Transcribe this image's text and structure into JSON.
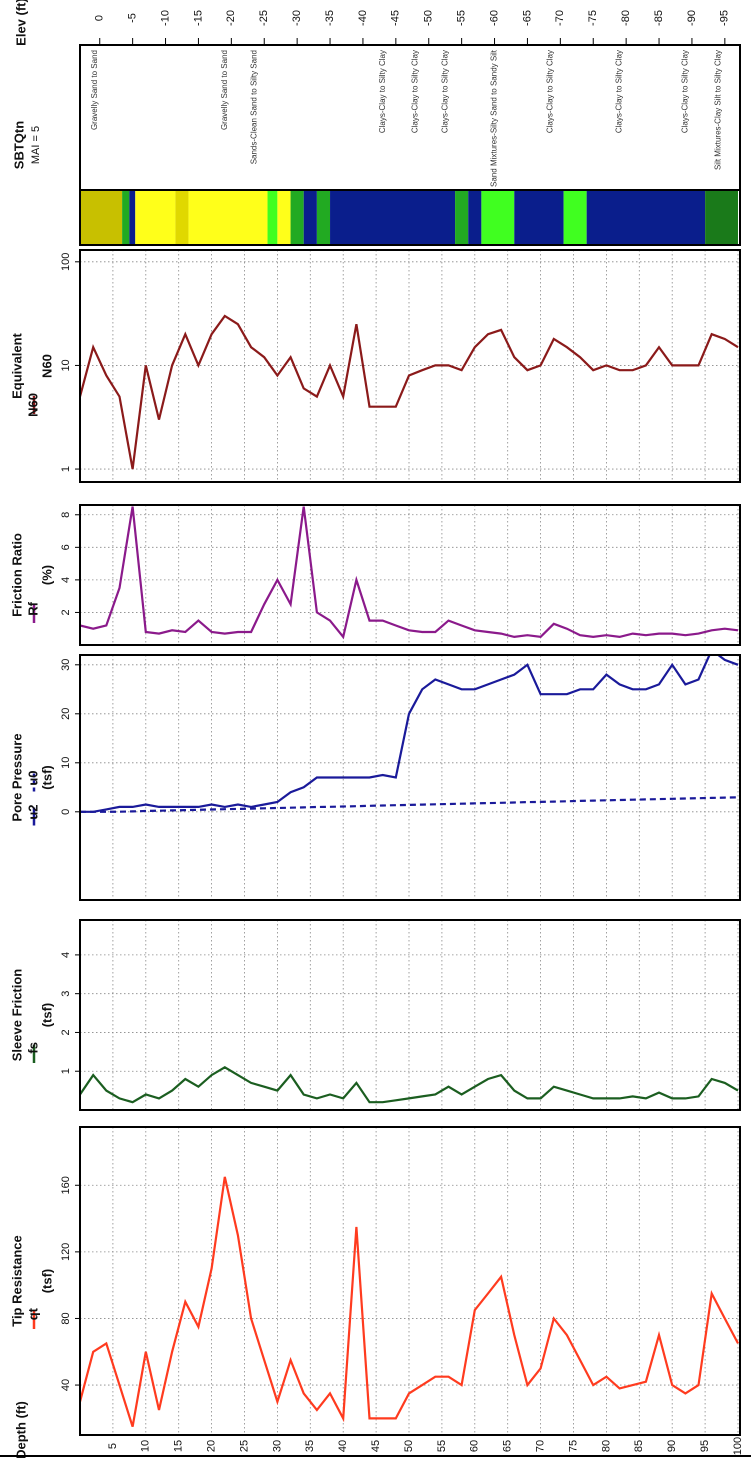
{
  "depth_axis": {
    "label": "Depth (ft)",
    "lim": [
      0,
      100
    ],
    "ticks": [
      5,
      10,
      15,
      20,
      25,
      30,
      35,
      40,
      45,
      50,
      55,
      60,
      65,
      70,
      75,
      80,
      85,
      90,
      95,
      100
    ]
  },
  "elevation_axis": {
    "label": "Elev (ft)",
    "lim": [
      3,
      -97
    ],
    "ticks": [
      0,
      -5,
      -10,
      -15,
      -20,
      -25,
      -30,
      -35,
      -40,
      -45,
      -50,
      -55,
      -60,
      -65,
      -70,
      -75,
      -80,
      -85,
      -90,
      -95
    ]
  },
  "sbt": {
    "title": "SBTQtn",
    "subtitle": "MAI = 5",
    "layers": [
      {
        "top": 0,
        "bottom": 6.4,
        "color": "#c8c000"
      },
      {
        "top": 6.4,
        "bottom": 7.5,
        "color": "#22aa22"
      },
      {
        "top": 7.5,
        "bottom": 8.4,
        "color": "#0a1e8c"
      },
      {
        "top": 8.4,
        "bottom": 14.5,
        "color": "#ffff1a"
      },
      {
        "top": 14.5,
        "bottom": 16.5,
        "color": "#e0d800"
      },
      {
        "top": 16.5,
        "bottom": 28.5,
        "color": "#ffff1a"
      },
      {
        "top": 28.5,
        "bottom": 30,
        "color": "#40ff20"
      },
      {
        "top": 30,
        "bottom": 32,
        "color": "#ffff1a"
      },
      {
        "top": 32,
        "bottom": 34,
        "color": "#22aa22"
      },
      {
        "top": 34,
        "bottom": 36,
        "color": "#0a1e8c"
      },
      {
        "top": 36,
        "bottom": 38,
        "color": "#22aa22"
      },
      {
        "top": 38,
        "bottom": 57,
        "color": "#0a1e8c"
      },
      {
        "top": 57,
        "bottom": 59,
        "color": "#22aa22"
      },
      {
        "top": 59,
        "bottom": 61,
        "color": "#0a1e8c"
      },
      {
        "top": 61,
        "bottom": 66,
        "color": "#40ff20"
      },
      {
        "top": 66,
        "bottom": 73.5,
        "color": "#0a1e8c"
      },
      {
        "top": 73.5,
        "bottom": 77,
        "color": "#40ff20"
      },
      {
        "top": 77,
        "bottom": 95,
        "color": "#0a1e8c"
      },
      {
        "top": 95,
        "bottom": 100,
        "color": "#1a7a1a"
      }
    ],
    "zone_labels": [
      {
        "text": "Gravelly Sand to Sand",
        "depth": 2.3
      },
      {
        "text": "Gravelly Sand to Sand",
        "depth": 22
      },
      {
        "text": "Sands-Clean Sand to Silty Sand",
        "depth": 26.5
      },
      {
        "text": "Clays-Clay to Silty Clay",
        "depth": 46
      },
      {
        "text": "Clays-Clay to Silty Clay",
        "depth": 51
      },
      {
        "text": "Clays-Clay to Silty Clay",
        "depth": 55.5
      },
      {
        "text": "Sand Mixtures-Silty Sand to Sandy Silt",
        "depth": 63
      },
      {
        "text": "Clays-Clay to Silty Clay",
        "depth": 71.5
      },
      {
        "text": "Clays-Clay to Silty Clay",
        "depth": 82
      },
      {
        "text": "Clays-Clay to Silty Clay",
        "depth": 92
      },
      {
        "text": "Silt Mixtures-Clay Silt to Silty Clay",
        "depth": 97
      }
    ]
  },
  "chart_data": [
    {
      "type": "line",
      "title": "Tip Resistance",
      "unit": "(tsf)",
      "ylim": [
        10,
        195
      ],
      "yticks": [
        40,
        80,
        120,
        160
      ],
      "grid": true,
      "x": [
        0,
        2,
        4,
        6,
        8,
        10,
        12,
        14,
        16,
        18,
        20,
        22,
        24,
        26,
        28,
        30,
        32,
        34,
        36,
        38,
        40,
        42,
        44,
        46,
        48,
        50,
        52,
        54,
        56,
        58,
        60,
        62,
        64,
        66,
        68,
        70,
        72,
        74,
        76,
        78,
        80,
        82,
        84,
        86,
        88,
        90,
        92,
        94,
        96,
        98,
        100
      ],
      "series": [
        {
          "name": "qt",
          "color": "#ff3b1f",
          "dashed": false,
          "values": [
            30,
            60,
            65,
            40,
            15,
            60,
            25,
            60,
            90,
            75,
            110,
            165,
            130,
            80,
            55,
            30,
            55,
            35,
            25,
            35,
            20,
            135,
            20,
            20,
            20,
            35,
            40,
            45,
            45,
            40,
            85,
            95,
            105,
            70,
            40,
            50,
            80,
            70,
            55,
            40,
            45,
            38,
            40,
            42,
            70,
            40,
            35,
            40,
            95,
            80,
            65
          ]
        }
      ]
    },
    {
      "type": "line",
      "title": "Sleeve Friction",
      "unit": "(tsf)",
      "ylim": [
        0,
        4.9
      ],
      "yticks": [
        1,
        2,
        3,
        4
      ],
      "grid": true,
      "x": [
        0,
        2,
        4,
        6,
        8,
        10,
        12,
        14,
        16,
        18,
        20,
        22,
        24,
        26,
        28,
        30,
        32,
        34,
        36,
        38,
        40,
        42,
        44,
        46,
        48,
        50,
        52,
        54,
        56,
        58,
        60,
        62,
        64,
        66,
        68,
        70,
        72,
        74,
        76,
        78,
        80,
        82,
        84,
        86,
        88,
        90,
        92,
        94,
        96,
        98,
        100
      ],
      "series": [
        {
          "name": "fs",
          "color": "#1b5e20",
          "dashed": false,
          "values": [
            0.4,
            0.9,
            0.5,
            0.3,
            0.2,
            0.4,
            0.3,
            0.5,
            0.8,
            0.6,
            0.9,
            1.1,
            0.9,
            0.7,
            0.6,
            0.5,
            0.9,
            0.4,
            0.3,
            0.4,
            0.3,
            0.7,
            0.2,
            0.2,
            0.25,
            0.3,
            0.35,
            0.4,
            0.6,
            0.4,
            0.6,
            0.8,
            0.9,
            0.5,
            0.3,
            0.3,
            0.6,
            0.5,
            0.4,
            0.3,
            0.3,
            0.3,
            0.35,
            0.3,
            0.45,
            0.3,
            0.3,
            0.35,
            0.8,
            0.7,
            0.5
          ]
        }
      ]
    },
    {
      "type": "line",
      "title": "Pore Pressure",
      "unit": "(tsf)",
      "ylim": [
        -18,
        32
      ],
      "yticks": [
        0,
        10,
        20,
        30
      ],
      "grid": true,
      "x": [
        0,
        2,
        4,
        6,
        8,
        10,
        12,
        14,
        16,
        18,
        20,
        22,
        24,
        26,
        28,
        30,
        32,
        34,
        36,
        38,
        40,
        42,
        44,
        46,
        48,
        50,
        52,
        54,
        56,
        58,
        60,
        62,
        64,
        66,
        68,
        70,
        72,
        74,
        76,
        78,
        80,
        82,
        84,
        86,
        88,
        90,
        92,
        94,
        96,
        98,
        100
      ],
      "series": [
        {
          "name": "u2",
          "color": "#1a1a9a",
          "dashed": false,
          "values": [
            0,
            0,
            0.5,
            1,
            1,
            1.5,
            1,
            1,
            1,
            1,
            1.5,
            1,
            1.5,
            1,
            1.5,
            2,
            4,
            5,
            7,
            7,
            7,
            7,
            7,
            7.5,
            7,
            20,
            25,
            27,
            26,
            25,
            25,
            26,
            27,
            28,
            30,
            24,
            24,
            24,
            25,
            25,
            28,
            26,
            25,
            25,
            26,
            30,
            26,
            27,
            33,
            31,
            30
          ]
        },
        {
          "name": "u0",
          "color": "#1a1a9a",
          "dashed": true,
          "values": [
            0,
            0,
            0,
            0.03,
            0.09,
            0.16,
            0.22,
            0.28,
            0.34,
            0.41,
            0.47,
            0.53,
            0.59,
            0.66,
            0.72,
            0.78,
            0.84,
            0.9,
            0.97,
            1.03,
            1.09,
            1.15,
            1.22,
            1.28,
            1.34,
            1.4,
            1.47,
            1.53,
            1.59,
            1.65,
            1.72,
            1.78,
            1.84,
            1.9,
            1.97,
            2.03,
            2.09,
            2.15,
            2.22,
            2.28,
            2.34,
            2.4,
            2.46,
            2.53,
            2.59,
            2.65,
            2.71,
            2.78,
            2.84,
            2.9,
            2.96
          ]
        }
      ]
    },
    {
      "type": "line",
      "title": "Friction Ratio",
      "unit": "(%)",
      "ylim": [
        0,
        8.6
      ],
      "yticks": [
        2,
        4,
        6,
        8
      ],
      "grid": true,
      "x": [
        0,
        2,
        4,
        6,
        8,
        10,
        12,
        14,
        16,
        18,
        20,
        22,
        24,
        26,
        28,
        30,
        32,
        34,
        36,
        38,
        40,
        42,
        44,
        46,
        48,
        50,
        52,
        54,
        56,
        58,
        60,
        62,
        64,
        66,
        68,
        70,
        72,
        74,
        76,
        78,
        80,
        82,
        84,
        86,
        88,
        90,
        92,
        94,
        96,
        98,
        100
      ],
      "series": [
        {
          "name": "Rf",
          "color": "#8b1a8b",
          "dashed": false,
          "values": [
            1.2,
            1.0,
            1.2,
            3.5,
            8.5,
            0.8,
            0.7,
            0.9,
            0.8,
            1.5,
            0.8,
            0.7,
            0.8,
            0.8,
            2.5,
            4,
            2.5,
            8.5,
            2,
            1.5,
            0.5,
            4,
            1.5,
            1.5,
            1.2,
            0.9,
            0.8,
            0.8,
            1.5,
            1.2,
            0.9,
            0.8,
            0.7,
            0.5,
            0.6,
            0.5,
            1.3,
            1.0,
            0.6,
            0.5,
            0.6,
            0.5,
            0.7,
            0.6,
            0.7,
            0.7,
            0.6,
            0.7,
            0.9,
            1.0,
            0.9
          ]
        }
      ]
    },
    {
      "type": "line",
      "title": "Equivalent",
      "unit": "N60",
      "log": true,
      "ylim": [
        0.75,
        130
      ],
      "yticks": [
        1,
        10,
        100
      ],
      "grid": true,
      "x": [
        0,
        2,
        4,
        6,
        8,
        10,
        12,
        14,
        16,
        18,
        20,
        22,
        24,
        26,
        28,
        30,
        32,
        34,
        36,
        38,
        40,
        42,
        44,
        46,
        48,
        50,
        52,
        54,
        56,
        58,
        60,
        62,
        64,
        66,
        68,
        70,
        72,
        74,
        76,
        78,
        80,
        82,
        84,
        86,
        88,
        90,
        92,
        94,
        96,
        98,
        100
      ],
      "series": [
        {
          "name": "N60",
          "color": "#8b1a1a",
          "dashed": false,
          "values": [
            5,
            15,
            8,
            5,
            1,
            10,
            3,
            10,
            20,
            10,
            20,
            30,
            25,
            15,
            12,
            8,
            12,
            6,
            5,
            10,
            5,
            25,
            4,
            4,
            4,
            8,
            9,
            10,
            10,
            9,
            15,
            20,
            22,
            12,
            9,
            10,
            18,
            15,
            12,
            9,
            10,
            9,
            9,
            10,
            15,
            10,
            10,
            10,
            20,
            18,
            15
          ]
        }
      ]
    }
  ]
}
